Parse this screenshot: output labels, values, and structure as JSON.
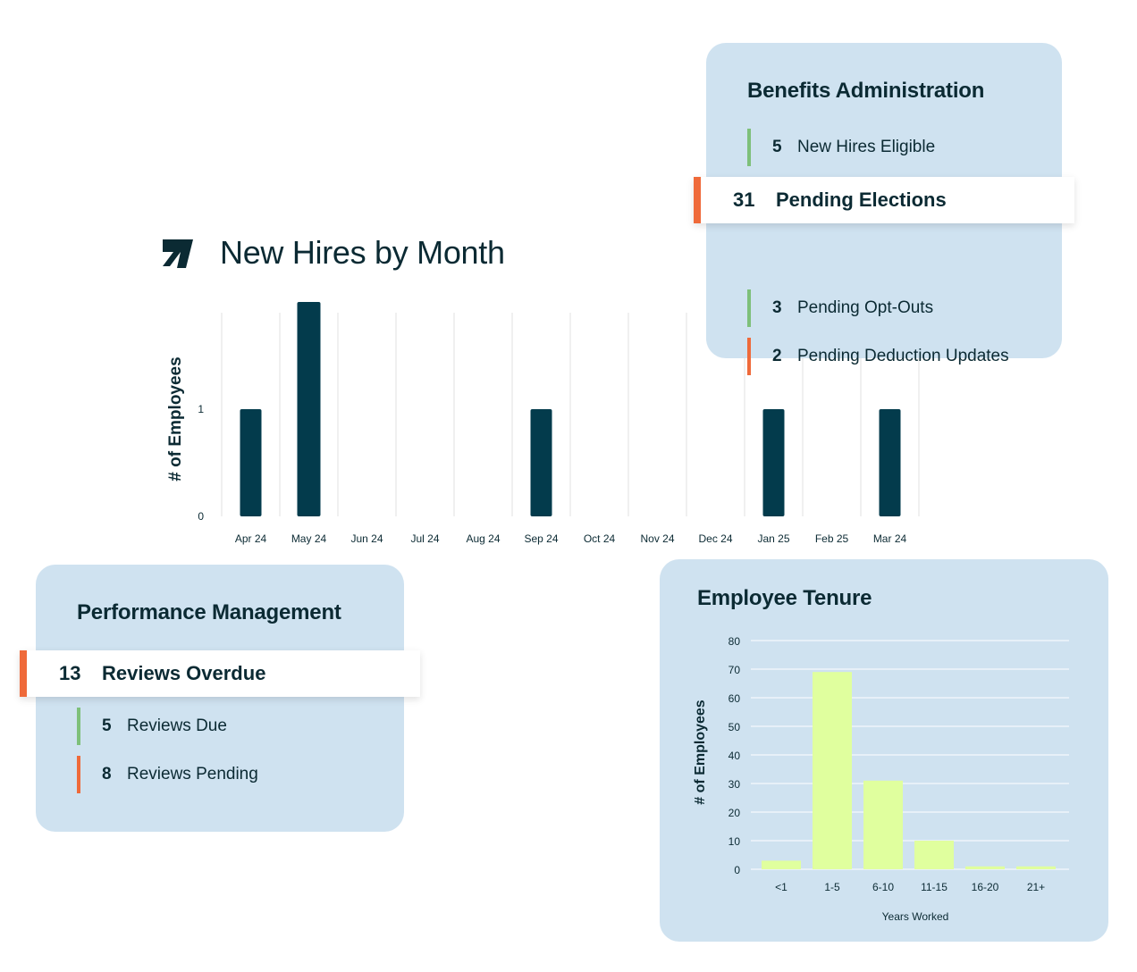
{
  "new_hires": {
    "title": "New Hires by Month",
    "logo_icon": "arrow-logo-icon"
  },
  "benefits": {
    "title": "Benefits Administration",
    "items": [
      {
        "count": "5",
        "label": "New Hires Eligible",
        "color": "#7ec07a",
        "highlight": false
      },
      {
        "count": "31",
        "label": "Pending Elections",
        "color": "#ef6a3a",
        "highlight": true
      },
      {
        "count": "3",
        "label": "Pending Opt-Outs",
        "color": "#7ec07a",
        "highlight": false
      },
      {
        "count": "2",
        "label": "Pending Deduction Updates",
        "color": "#ef6a3a",
        "highlight": false
      }
    ]
  },
  "performance": {
    "title": "Performance Management",
    "items": [
      {
        "count": "13",
        "label": "Reviews Overdue",
        "color": "#ef6a3a",
        "highlight": true
      },
      {
        "count": "5",
        "label": "Reviews Due",
        "color": "#7ec07a",
        "highlight": false
      },
      {
        "count": "8",
        "label": "Reviews Pending",
        "color": "#ef6a3a",
        "highlight": false
      }
    ]
  },
  "tenure": {
    "title": "Employee Tenure"
  },
  "colors": {
    "navy": "#033b4c",
    "lime": "#e0ff9e",
    "card_bg": "#cfe2f0",
    "green": "#7ec07a",
    "orange": "#ef6a3a"
  },
  "chart_data": [
    {
      "type": "bar",
      "title": "New Hires by Month",
      "categories": [
        "Apr 24",
        "May 24",
        "Jun 24",
        "Jul 24",
        "Aug 24",
        "Sep 24",
        "Oct 24",
        "Nov 24",
        "Dec 24",
        "Jan 25",
        "Feb 25",
        "Mar 24"
      ],
      "values": [
        1,
        2,
        0,
        0,
        0,
        1,
        0,
        0,
        0,
        1,
        0,
        1
      ],
      "yticks": [
        0,
        1
      ],
      "ylim": [
        0,
        2
      ],
      "xlabel": "",
      "ylabel": "# of Employees",
      "grid": "vertical"
    },
    {
      "type": "bar",
      "title": "Employee Tenure",
      "categories": [
        "<1",
        "1-5",
        "6-10",
        "11-15",
        "16-20",
        "21+"
      ],
      "values": [
        3,
        69,
        31,
        10,
        1,
        1
      ],
      "yticks": [
        0,
        10,
        20,
        30,
        40,
        50,
        60,
        70,
        80
      ],
      "ylim": [
        0,
        80
      ],
      "xlabel": "Years Worked",
      "ylabel": "# of Employees",
      "grid": "horizontal"
    }
  ]
}
